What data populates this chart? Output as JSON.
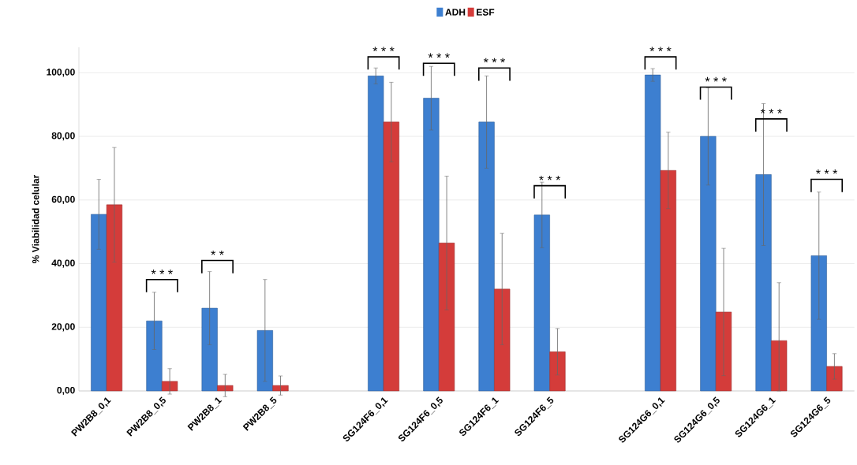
{
  "chart_data": {
    "type": "bar",
    "ylabel": "% Viabilidad celular",
    "categories": [
      "PW2B8_0,1",
      "PW2B8_0,5",
      "PW2B8_1",
      "PW2B8_5",
      null,
      "SG124F6_0,1",
      "SG124F6_0,5",
      "SG124F6_1",
      "SG124F6_5",
      null,
      "SG124G6_0,1",
      "SG124G6_0,5",
      "SG124G6_1",
      "SG124G6_5"
    ],
    "series": [
      {
        "name": "ADH",
        "color": "#3d7fd0",
        "values": [
          55.5,
          22,
          26,
          19,
          null,
          99,
          92,
          84.5,
          55.3,
          null,
          99.3,
          80,
          68,
          42.5
        ],
        "errors": [
          11,
          9,
          11.5,
          16,
          null,
          2.5,
          10,
          14.5,
          10.3,
          null,
          2,
          15.3,
          22.3,
          20
        ]
      },
      {
        "name": "ESF",
        "color": "#d43c3a",
        "values": [
          58.5,
          3,
          1.7,
          1.7,
          null,
          84.5,
          46.5,
          32,
          12.3,
          null,
          69.3,
          24.8,
          15.8,
          7.7
        ],
        "errors": [
          18,
          4,
          3.5,
          3,
          null,
          12.5,
          21,
          17.5,
          7.3,
          null,
          12,
          20,
          [
            0,
            34
          ],
          4
        ]
      }
    ],
    "ylim": [
      0,
      108
    ],
    "yticks": [
      {
        "value": 0,
        "label": "0,00"
      },
      {
        "value": 20,
        "label": "20,00"
      },
      {
        "value": 40,
        "label": "40,00"
      },
      {
        "value": 60,
        "label": "60,00"
      },
      {
        "value": 80,
        "label": "80,00"
      },
      {
        "value": 100,
        "label": "100,00"
      }
    ],
    "grid": "y",
    "legend": "top",
    "annotations": [
      "* * *",
      "* *",
      "* * *",
      "* * *",
      "* * *",
      "* * *",
      "* * *",
      "* * *",
      "* * *",
      "* * *"
    ]
  }
}
